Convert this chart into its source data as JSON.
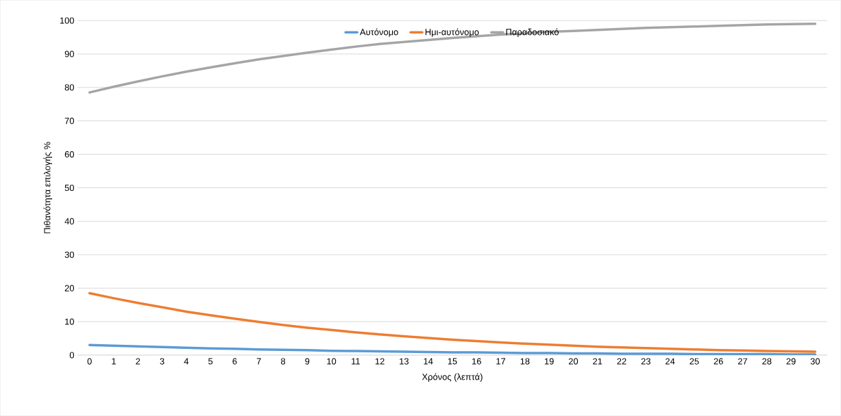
{
  "chart_data": {
    "type": "line",
    "xlabel": "Χρόνος (λεπτά)",
    "ylabel": "Πιθανότητα επιλογής %",
    "categories": [
      "0",
      "1",
      "2",
      "3",
      "4",
      "5",
      "6",
      "7",
      "8",
      "9",
      "10",
      "11",
      "12",
      "13",
      "14",
      "15",
      "16",
      "17",
      "18",
      "19",
      "20",
      "21",
      "22",
      "23",
      "24",
      "25",
      "26",
      "27",
      "28",
      "29",
      "30"
    ],
    "ylim": [
      0,
      100
    ],
    "yticks": [
      0,
      10,
      20,
      30,
      40,
      50,
      60,
      70,
      80,
      90,
      100
    ],
    "grid": "y",
    "legend": "top",
    "marker": "none",
    "line_style": "solid",
    "series": [
      {
        "name": "Αυτόνομο",
        "color": "#5b9bd5",
        "values": [
          3.0,
          2.8,
          2.6,
          2.4,
          2.2,
          2.0,
          1.9,
          1.7,
          1.6,
          1.5,
          1.3,
          1.2,
          1.1,
          1.0,
          0.9,
          0.8,
          0.8,
          0.7,
          0.6,
          0.6,
          0.5,
          0.5,
          0.4,
          0.4,
          0.4,
          0.3,
          0.3,
          0.3,
          0.3,
          0.2,
          0.2
        ]
      },
      {
        "name": "Ημι-αυτόνομο",
        "color": "#ed7d31",
        "values": [
          18.5,
          17.0,
          15.6,
          14.3,
          13.0,
          11.9,
          10.9,
          9.9,
          9.0,
          8.2,
          7.5,
          6.8,
          6.2,
          5.6,
          5.1,
          4.6,
          4.2,
          3.8,
          3.4,
          3.1,
          2.8,
          2.5,
          2.3,
          2.1,
          1.9,
          1.7,
          1.5,
          1.4,
          1.2,
          1.1,
          1.0
        ]
      },
      {
        "name": "Παραδοσιακό",
        "color": "#a5a5a5",
        "values": [
          78.5,
          80.2,
          81.8,
          83.3,
          84.7,
          86.0,
          87.2,
          88.4,
          89.4,
          90.4,
          91.3,
          92.2,
          93.0,
          93.6,
          94.2,
          94.8,
          95.3,
          95.8,
          96.2,
          96.6,
          96.9,
          97.2,
          97.5,
          97.8,
          98.0,
          98.2,
          98.4,
          98.6,
          98.8,
          98.9,
          99.0
        ]
      }
    ]
  }
}
